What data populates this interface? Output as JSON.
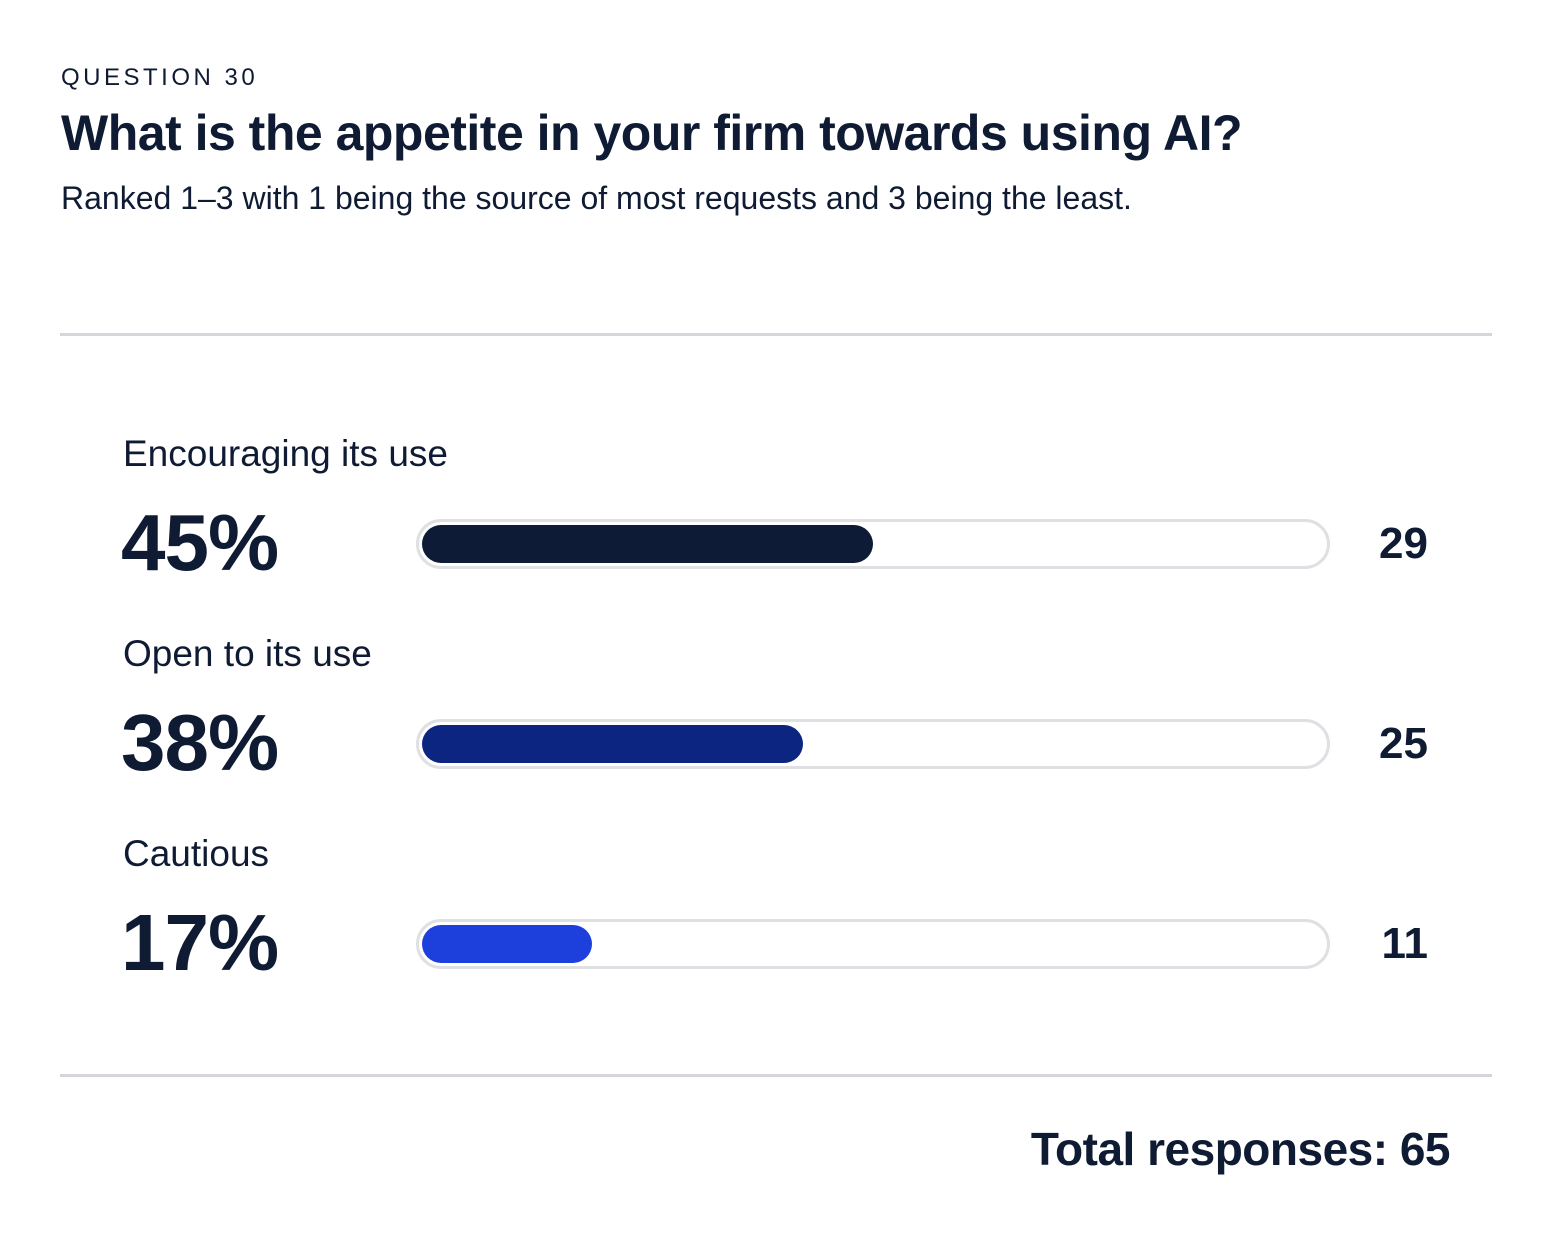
{
  "header": {
    "eyebrow": "QUESTION 30",
    "title": "What is the appetite in your firm towards using AI?",
    "subtitle": "Ranked 1–3 with 1 being the source of most requests and 3 being the least."
  },
  "chart_data": {
    "type": "bar",
    "orientation": "horizontal",
    "title": "What is the appetite in your firm towards using AI?",
    "categories": [
      "Encouraging its use",
      "Open to its use",
      "Cautious"
    ],
    "percent_labels": [
      "45%",
      "38%",
      "17%"
    ],
    "percentages": [
      45,
      38,
      17
    ],
    "counts": [
      29,
      25,
      11
    ],
    "colors": [
      "#0d1b36",
      "#0b2580",
      "#1d3fdb"
    ],
    "track_color": "#dfe0e4",
    "xlim": [
      0,
      90
    ],
    "grid": false,
    "legend": "none"
  },
  "footer": {
    "total_label": "Total responses: 65"
  }
}
